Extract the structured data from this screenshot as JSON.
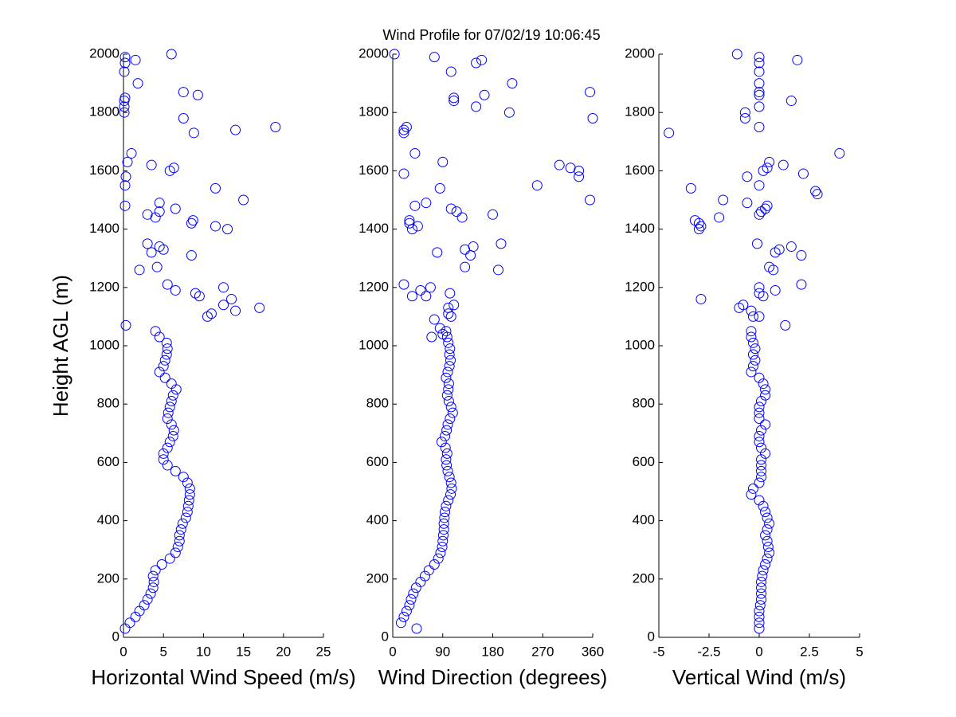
{
  "chart_data": [
    {
      "type": "scatter",
      "ylabel": "Height AGL (m)",
      "xlabel": "Horizontal Wind Speed (m/s)",
      "color": "#0000ff",
      "xlim": [
        0,
        25
      ],
      "xticks": [
        0,
        5,
        10,
        15,
        20,
        25
      ],
      "ylim": [
        0,
        2000
      ],
      "yticks": [
        0,
        200,
        400,
        600,
        800,
        1000,
        1200,
        1400,
        1600,
        1800,
        2000
      ],
      "x": [
        0.2,
        0.8,
        1.5,
        2,
        2.6,
        3,
        3.4,
        3.7,
        3.8,
        3.7,
        4,
        4.8,
        5.8,
        6.5,
        6.8,
        7,
        7,
        7.2,
        7.4,
        7.8,
        8,
        8.1,
        8.2,
        8.3,
        8.3,
        8,
        7.5,
        6.5,
        5.5,
        5,
        5,
        5.5,
        5.8,
        6.2,
        6.3,
        6,
        5.5,
        5.6,
        5.8,
        6,
        6.2,
        6.6,
        6,
        5.2,
        4.5,
        5,
        5.2,
        5.4,
        5.5,
        5.4,
        4.5,
        4,
        0.3,
        10.5,
        11,
        12.5,
        14,
        17,
        13.5,
        9,
        9.5,
        6.5,
        5.5,
        12.5,
        2,
        4.2,
        8.5,
        3.5,
        4.5,
        5,
        3,
        13,
        11.5,
        8.5,
        8.7,
        3,
        4,
        4.5,
        6.5,
        4.5,
        0.2,
        15,
        11.5,
        0.2,
        0.3,
        5.8,
        6.3,
        3.5,
        0.5,
        1,
        8.8,
        14,
        19,
        7.5,
        0.1,
        0.1,
        0.1,
        0.2,
        9.3,
        7.5,
        1.8,
        0.1,
        0.2,
        1.5,
        0.2,
        6
      ],
      "values": [
        30,
        50,
        70,
        90,
        110,
        130,
        150,
        170,
        190,
        210,
        230,
        250,
        270,
        290,
        310,
        330,
        350,
        370,
        390,
        410,
        430,
        450,
        470,
        490,
        510,
        530,
        550,
        570,
        590,
        610,
        630,
        650,
        670,
        690,
        710,
        730,
        750,
        770,
        790,
        810,
        830,
        850,
        870,
        890,
        910,
        930,
        950,
        970,
        990,
        1010,
        1030,
        1050,
        1070,
        1100,
        1110,
        1140,
        1120,
        1130,
        1160,
        1180,
        1170,
        1190,
        1210,
        1200,
        1260,
        1270,
        1310,
        1320,
        1340,
        1330,
        1350,
        1400,
        1410,
        1420,
        1430,
        1450,
        1440,
        1460,
        1470,
        1490,
        1480,
        1500,
        1540,
        1550,
        1580,
        1600,
        1610,
        1620,
        1630,
        1660,
        1730,
        1740,
        1750,
        1780,
        1800,
        1820,
        1840,
        1850,
        1860,
        1870,
        1900,
        1940,
        1970,
        1980,
        1990,
        2000
      ]
    },
    {
      "type": "scatter",
      "title": "Wind Profile for  07/02/19 10:06:45",
      "xlabel": "Wind Direction (degrees)",
      "color": "#0000ff",
      "xlim": [
        0,
        360
      ],
      "xticks": [
        0,
        90,
        180,
        270,
        360
      ],
      "ylim": [
        0,
        2000
      ],
      "yticks": [
        0,
        200,
        400,
        600,
        800,
        1000,
        1200,
        1400,
        1600,
        1800,
        2000
      ],
      "x": [
        43,
        15,
        20,
        25,
        30,
        33,
        37,
        42,
        50,
        58,
        65,
        75,
        82,
        86,
        89,
        90,
        91,
        92,
        92,
        93,
        94,
        96,
        100,
        104,
        106,
        105,
        102,
        99,
        97,
        96,
        98,
        95,
        88,
        94,
        97,
        99,
        103,
        108,
        105,
        101,
        98,
        100,
        101,
        96,
        99,
        102,
        104,
        102,
        103,
        100,
        98,
        96,
        70,
        90,
        85,
        75,
        105,
        100,
        110,
        100,
        35,
        60,
        103,
        20,
        50,
        68,
        140,
        130,
        145,
        190,
        130,
        80,
        195,
        35,
        45,
        30,
        30,
        125,
        180,
        105,
        115,
        40,
        60,
        355,
        85,
        260,
        335,
        335,
        320,
        300,
        20,
        90,
        40,
        20,
        20,
        25,
        360,
        210,
        150,
        110,
        110,
        165,
        355,
        215,
        105,
        150,
        160,
        75,
        3
      ],
      "values": [
        30,
        50,
        70,
        90,
        110,
        130,
        150,
        170,
        190,
        210,
        230,
        250,
        270,
        290,
        310,
        330,
        350,
        370,
        390,
        410,
        430,
        450,
        470,
        490,
        510,
        530,
        550,
        570,
        590,
        610,
        630,
        650,
        670,
        690,
        710,
        730,
        750,
        770,
        790,
        810,
        830,
        850,
        870,
        890,
        910,
        930,
        950,
        970,
        990,
        1010,
        1030,
        1050,
        1030,
        1040,
        1060,
        1090,
        1100,
        1110,
        1140,
        1130,
        1170,
        1170,
        1180,
        1210,
        1190,
        1200,
        1310,
        1330,
        1340,
        1260,
        1270,
        1320,
        1350,
        1400,
        1410,
        1420,
        1430,
        1440,
        1450,
        1470,
        1460,
        1480,
        1490,
        1500,
        1540,
        1550,
        1580,
        1600,
        1610,
        1620,
        1590,
        1630,
        1660,
        1730,
        1740,
        1750,
        1780,
        1800,
        1820,
        1840,
        1850,
        1860,
        1870,
        1900,
        1940,
        1970,
        1980,
        1990,
        2000
      ]
    },
    {
      "type": "scatter",
      "xlabel": "Vertical Wind (m/s)",
      "color": "#0000ff",
      "xlim": [
        -5,
        5
      ],
      "xticks": [
        -5,
        -2.5,
        0,
        2.5,
        5
      ],
      "ylim": [
        0,
        2000
      ],
      "yticks": [
        0,
        200,
        400,
        600,
        800,
        1000,
        1200,
        1400,
        1600,
        1800,
        2000
      ],
      "x": [
        0,
        0,
        0,
        0,
        0.05,
        0.1,
        0.1,
        0.1,
        0.1,
        0.15,
        0.2,
        0.3,
        0.4,
        0.5,
        0.45,
        0.4,
        0.3,
        0.4,
        0.5,
        0.4,
        0.3,
        0.2,
        0,
        -0.4,
        -0.3,
        0,
        0.1,
        0.1,
        0.1,
        0.1,
        0.3,
        0.1,
        0,
        0,
        0.1,
        0.3,
        0,
        0,
        0,
        0.1,
        0.3,
        0.3,
        0.2,
        0,
        -0.4,
        -0.3,
        -0.2,
        -0.3,
        -0.2,
        -0.3,
        -0.4,
        -0.4,
        1.3,
        0,
        -0.3,
        -1,
        -0.8,
        -0.4,
        0.2,
        0,
        0.8,
        2.1,
        0,
        -2.9,
        0.7,
        0.5,
        2.1,
        0.8,
        1,
        1.6,
        -0.1,
        -3,
        -3.2,
        -2.9,
        -3,
        -2,
        0,
        0.1,
        0.3,
        0.4,
        -0.6,
        -1.8,
        2.8,
        2.9,
        -3.4,
        0,
        -0.6,
        2.2,
        0.2,
        0.4,
        1.2,
        0.5,
        4,
        -4.5,
        0,
        -0.7,
        -0.7,
        0,
        1.6,
        0,
        0,
        0,
        0,
        0,
        1.9,
        0,
        -1.1
      ],
      "values": [
        30,
        50,
        70,
        90,
        110,
        130,
        150,
        170,
        190,
        210,
        230,
        250,
        270,
        290,
        310,
        330,
        350,
        370,
        390,
        410,
        430,
        450,
        470,
        490,
        510,
        530,
        550,
        570,
        590,
        610,
        630,
        650,
        670,
        690,
        710,
        730,
        750,
        770,
        790,
        810,
        830,
        850,
        870,
        890,
        910,
        930,
        950,
        970,
        990,
        1010,
        1030,
        1050,
        1070,
        1100,
        1100,
        1130,
        1140,
        1120,
        1170,
        1180,
        1190,
        1210,
        1200,
        1160,
        1260,
        1270,
        1310,
        1320,
        1330,
        1340,
        1350,
        1400,
        1430,
        1410,
        1420,
        1440,
        1450,
        1460,
        1470,
        1480,
        1490,
        1500,
        1530,
        1520,
        1540,
        1550,
        1580,
        1590,
        1600,
        1610,
        1620,
        1630,
        1660,
        1730,
        1750,
        1780,
        1800,
        1820,
        1840,
        1860,
        1870,
        1900,
        1940,
        1970,
        1980,
        1990,
        2000
      ]
    }
  ]
}
